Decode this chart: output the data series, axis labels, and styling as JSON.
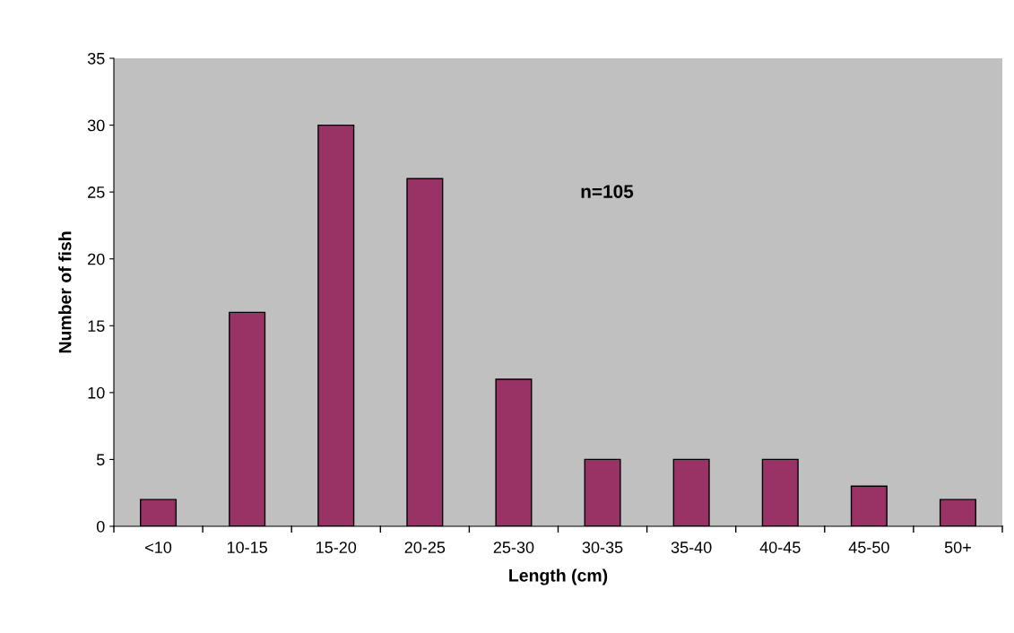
{
  "chart_data": {
    "type": "bar",
    "xlabel": "Length (cm)",
    "ylabel": "Number of fish",
    "categories": [
      "<10",
      "10-15",
      "15-20",
      "20-25",
      "25-30",
      "30-35",
      "35-40",
      "40-45",
      "45-50",
      "50+"
    ],
    "values": [
      2,
      16,
      30,
      26,
      11,
      5,
      5,
      5,
      3,
      2
    ],
    "color": "#993366",
    "ylim": [
      0,
      35
    ],
    "yticks": [
      0,
      5,
      10,
      15,
      20,
      25,
      30,
      35
    ],
    "grid": false,
    "annotations": [
      "n=105"
    ]
  }
}
